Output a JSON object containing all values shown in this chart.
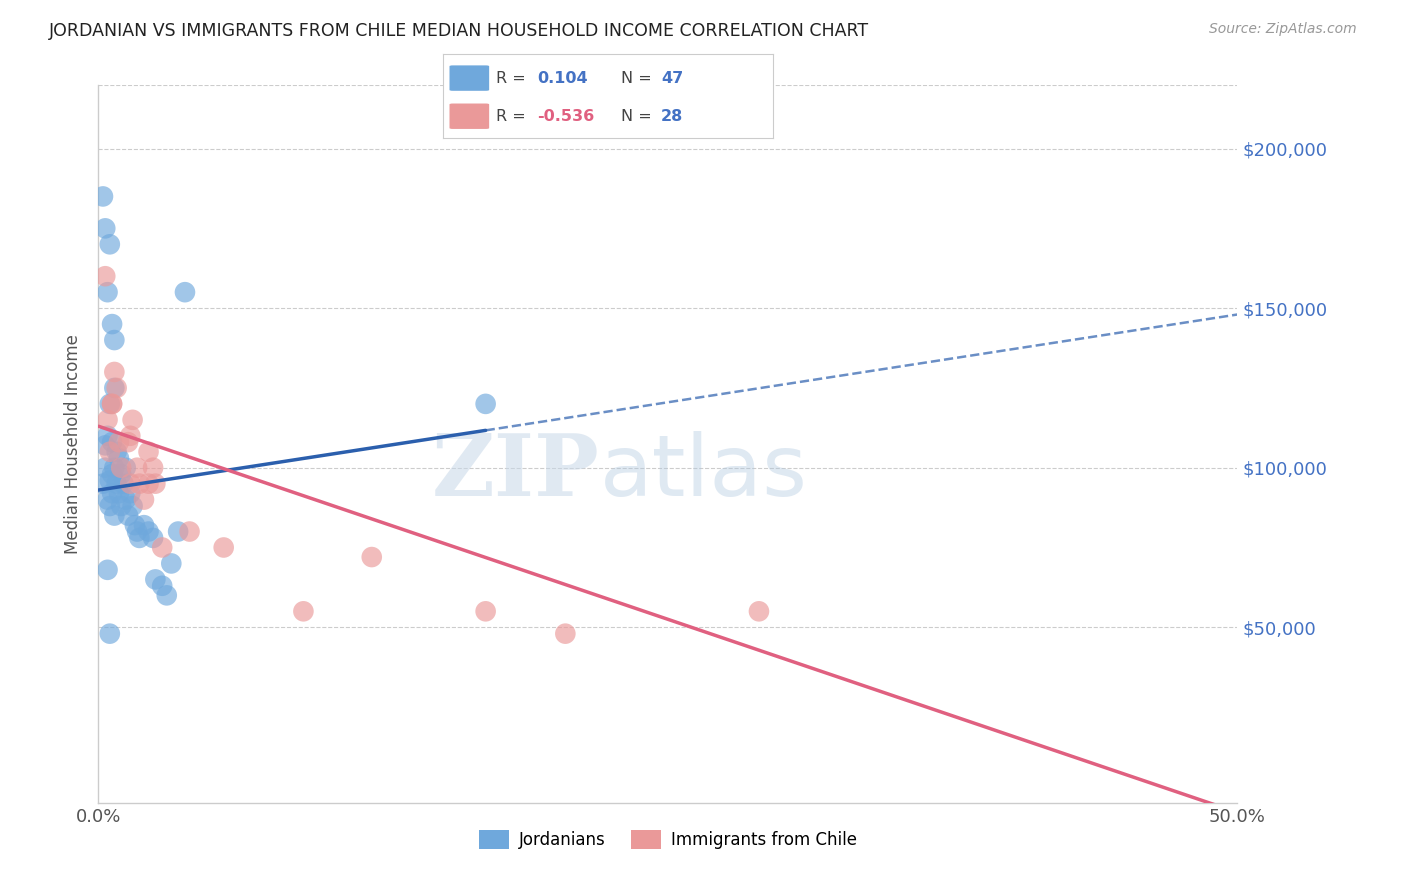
{
  "title": "JORDANIAN VS IMMIGRANTS FROM CHILE MEDIAN HOUSEHOLD INCOME CORRELATION CHART",
  "source": "Source: ZipAtlas.com",
  "ylabel": "Median Household Income",
  "y_tick_labels": [
    "$50,000",
    "$100,000",
    "$150,000",
    "$200,000"
  ],
  "y_tick_values": [
    50000,
    100000,
    150000,
    200000
  ],
  "xlim": [
    0.0,
    0.5
  ],
  "ylim": [
    -5000,
    220000
  ],
  "legend_blue_r": "0.104",
  "legend_blue_n": "47",
  "legend_pink_r": "-0.536",
  "legend_pink_n": "28",
  "blue_color": "#6fa8dc",
  "pink_color": "#ea9999",
  "blue_line_color": "#2b5fad",
  "pink_line_color": "#e06080",
  "blue_line_solid_end": 0.17,
  "blue_line_x0": 0.0,
  "blue_line_y0": 93000,
  "blue_line_x1": 0.5,
  "blue_line_y1": 148000,
  "pink_line_x0": 0.0,
  "pink_line_y0": 113000,
  "pink_line_x1": 0.5,
  "pink_line_y1": -8000,
  "jordanians_x": [
    0.002,
    0.003,
    0.003,
    0.004,
    0.004,
    0.005,
    0.005,
    0.005,
    0.006,
    0.006,
    0.006,
    0.007,
    0.007,
    0.007,
    0.008,
    0.008,
    0.009,
    0.009,
    0.01,
    0.01,
    0.011,
    0.012,
    0.012,
    0.013,
    0.014,
    0.015,
    0.016,
    0.017,
    0.018,
    0.02,
    0.022,
    0.024,
    0.025,
    0.028,
    0.03,
    0.032,
    0.035,
    0.002,
    0.003,
    0.004,
    0.005,
    0.006,
    0.007,
    0.038,
    0.004,
    0.005,
    0.17
  ],
  "jordanians_y": [
    95000,
    100000,
    107000,
    90000,
    110000,
    88000,
    96000,
    120000,
    92000,
    98000,
    108000,
    85000,
    100000,
    125000,
    95000,
    105000,
    92000,
    103000,
    88000,
    98000,
    95000,
    90000,
    100000,
    85000,
    92000,
    88000,
    82000,
    80000,
    78000,
    82000,
    80000,
    78000,
    65000,
    63000,
    60000,
    70000,
    80000,
    185000,
    175000,
    155000,
    170000,
    145000,
    140000,
    155000,
    68000,
    48000,
    120000
  ],
  "chile_x": [
    0.004,
    0.005,
    0.006,
    0.007,
    0.008,
    0.009,
    0.01,
    0.013,
    0.014,
    0.015,
    0.017,
    0.018,
    0.02,
    0.022,
    0.024,
    0.003,
    0.006,
    0.014,
    0.12,
    0.205,
    0.022,
    0.028,
    0.025,
    0.04,
    0.09,
    0.29,
    0.17,
    0.055
  ],
  "chile_y": [
    115000,
    105000,
    120000,
    130000,
    125000,
    108000,
    100000,
    108000,
    110000,
    115000,
    100000,
    95000,
    90000,
    105000,
    100000,
    160000,
    120000,
    95000,
    72000,
    48000,
    95000,
    75000,
    95000,
    80000,
    55000,
    55000,
    55000,
    75000
  ]
}
